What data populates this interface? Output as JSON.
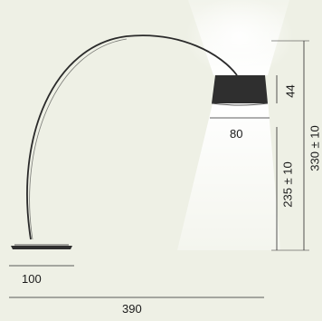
{
  "dimensions": {
    "shade_width": "80",
    "shade_height": "44",
    "light_height": "235 ± 10",
    "overall_height": "330 ± 10",
    "base_width": "100",
    "overall_reach": "390"
  },
  "colors": {
    "background": "#eef0e5",
    "line": "#2a2a2a",
    "shade": "#2f2f2f",
    "light": "#ffffff"
  }
}
